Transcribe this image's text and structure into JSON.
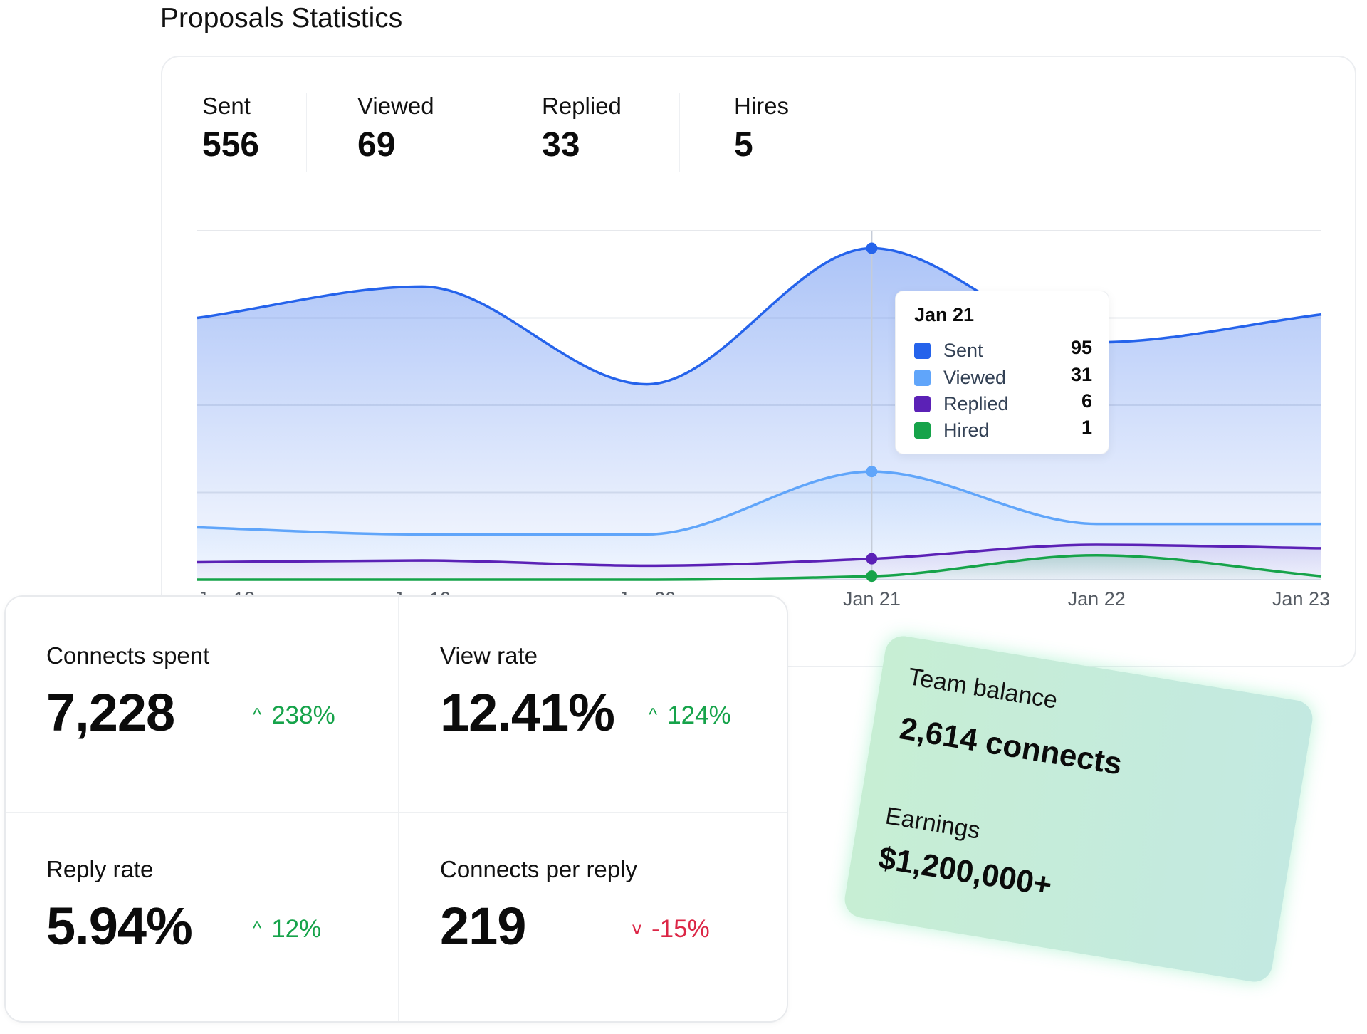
{
  "header": {
    "title": "Proposals Statistics"
  },
  "summary": [
    {
      "label": "Sent",
      "value": "556"
    },
    {
      "label": "Viewed",
      "value": "69"
    },
    {
      "label": "Replied",
      "value": "33"
    },
    {
      "label": "Hires",
      "value": "5"
    }
  ],
  "chart_data": {
    "type": "area",
    "categories": [
      "Jan 18",
      "Jan 19",
      "Jan 20",
      "Jan 21",
      "Jan 22",
      "Jan 23"
    ],
    "ylim": [
      0,
      100
    ],
    "grid": true,
    "series": [
      {
        "name": "Sent",
        "color": "#2563eb",
        "values": [
          75,
          84,
          56,
          95,
          68,
          76
        ]
      },
      {
        "name": "Viewed",
        "color": "#60a5fa",
        "values": [
          15,
          13,
          13,
          31,
          16,
          16
        ]
      },
      {
        "name": "Replied",
        "color": "#5b21b6",
        "values": [
          5,
          5.5,
          4,
          6,
          10,
          9
        ]
      },
      {
        "name": "Hired",
        "color": "#16a34a",
        "values": [
          0,
          0,
          0,
          1,
          7,
          1
        ]
      }
    ],
    "highlight_index": 3
  },
  "tooltip": {
    "title": "Jan 21",
    "rows": [
      {
        "label": "Sent",
        "value": "95",
        "color": "#2563eb"
      },
      {
        "label": "Viewed",
        "value": "31",
        "color": "#60a5fa"
      },
      {
        "label": "Replied",
        "value": "6",
        "color": "#5b21b6"
      },
      {
        "label": "Hired",
        "value": "1",
        "color": "#16a34a"
      }
    ]
  },
  "kpis": [
    {
      "label": "Connects spent",
      "value": "7,228",
      "change": "238%",
      "direction": "up"
    },
    {
      "label": "View rate",
      "value": "12.41%",
      "change": "124%",
      "direction": "up"
    },
    {
      "label": "Reply rate",
      "value": "5.94%",
      "change": "12%",
      "direction": "up"
    },
    {
      "label": "Connects per reply",
      "value": "219",
      "change": "-15%",
      "direction": "down"
    }
  ],
  "team_card": {
    "balance_label": "Team balance",
    "balance_value": "2,614 connects",
    "earnings_label": "Earnings",
    "earnings_value": "$1,200,000+"
  }
}
